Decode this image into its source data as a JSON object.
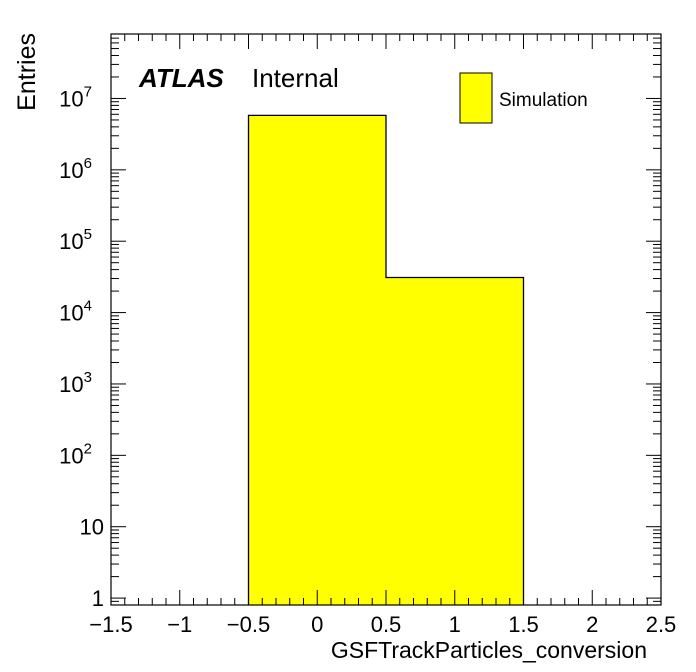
{
  "chart_data": {
    "type": "bar",
    "xlabel": "GSFTrackParticles_conversion",
    "ylabel": "Entries",
    "xlim": [
      -1.5,
      2.5
    ],
    "ylim": [
      0.8,
      80000000
    ],
    "yscale": "log",
    "x_tick_labels": [
      "−1.5",
      "−1",
      "−0.5",
      "0",
      "0.5",
      "1",
      "1.5",
      "2",
      "2.5"
    ],
    "x_ticks": [
      -1.5,
      -1,
      -0.5,
      0,
      0.5,
      1,
      1.5,
      2,
      2.5
    ],
    "y_ticks": [
      1,
      10,
      100,
      1000,
      10000,
      100000,
      1000000,
      10000000
    ],
    "y_tick_labels": [
      {
        "base": "1",
        "exp": ""
      },
      {
        "base": "10",
        "exp": ""
      },
      {
        "base": "10",
        "exp": "2"
      },
      {
        "base": "10",
        "exp": "3"
      },
      {
        "base": "10",
        "exp": "4"
      },
      {
        "base": "10",
        "exp": "5"
      },
      {
        "base": "10",
        "exp": "6"
      },
      {
        "base": "10",
        "exp": "7"
      }
    ],
    "bins": [
      {
        "x_low": -0.5,
        "x_high": 0.5,
        "value": 5800000
      },
      {
        "x_low": 0.5,
        "x_high": 1.5,
        "value": 31000
      }
    ],
    "fill_color": "#ffff00",
    "line_color": "#000000",
    "legend": {
      "entries": [
        {
          "name": "Simulation",
          "color": "#ffff00"
        }
      ],
      "placement": "top-right"
    },
    "label": {
      "experiment": "ATLAS",
      "status": "Internal"
    }
  }
}
